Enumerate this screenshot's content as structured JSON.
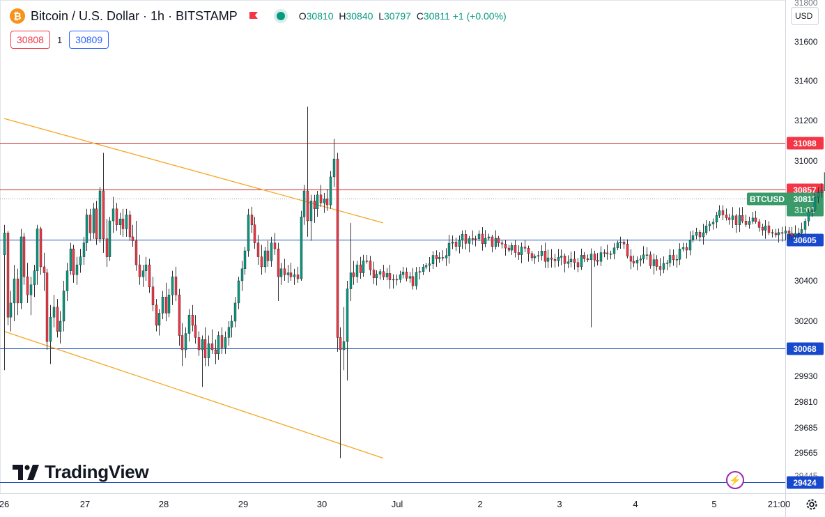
{
  "header": {
    "symbol_title": "Bitcoin / U.S. Dollar · 1h · BITSTAMP",
    "logo_glyph": "₿",
    "ohlc": {
      "o_label": "O",
      "o": "30810",
      "h_label": "H",
      "h": "30840",
      "l_label": "L",
      "l": "30797",
      "c_label": "C",
      "c": "30811",
      "change": "+1 (+0.00%)"
    }
  },
  "bid_ask": {
    "bid": "30808",
    "spread": "1",
    "ask": "30809"
  },
  "currency": "USD",
  "brand": "TradingView",
  "colors": {
    "up": "#089981",
    "down": "#f23645",
    "wick": "#333333",
    "trend": "#f5a623",
    "level_red": "#c62828",
    "level_blue": "#1e53b5",
    "level_label_red": "#f23645",
    "level_label_blue": "#1848cc",
    "last_price": "#3a9a6a"
  },
  "chart_data": {
    "type": "candlestick",
    "timeframe": "1h",
    "y_axis_ticks": [
      29424,
      29565,
      29685,
      29810,
      29930,
      30200,
      30400,
      30605,
      31000,
      31200,
      31400,
      31600
    ],
    "y_axis_partial_ticks": [
      "31800",
      "29445"
    ],
    "x_axis_ticks": [
      "26",
      "27",
      "28",
      "29",
      "30",
      "Jul",
      "2",
      "3",
      "4",
      "5",
      "21:00"
    ],
    "horizontal_levels": [
      {
        "price": 31088,
        "label": "31088",
        "color": "red"
      },
      {
        "price": 30857,
        "label": "30857",
        "color": "red"
      },
      {
        "price": 30605,
        "label": "30605",
        "color": "blue"
      },
      {
        "price": 30068,
        "label": "30068",
        "color": "blue"
      },
      {
        "price": 29424,
        "label": "29424",
        "color": "blue"
      }
    ],
    "trend_lines": [
      {
        "from": [
          "Jun 26 00:00",
          31210
        ],
        "to": [
          "Jun 30 19:00",
          30690
        ]
      },
      {
        "from": [
          "Jun 26 00:00",
          30150
        ],
        "to": [
          "Jun 30 19:00",
          29540
        ]
      }
    ],
    "last_price": {
      "symbol": "BTCUSD",
      "price": "30811",
      "countdown": "31:01"
    },
    "ohlc_series": [
      [
        "Jun 26 00h",
        30530,
        30680,
        29960,
        30640
      ],
      [
        "Jun 26 01h",
        30640,
        30650,
        30180,
        30220
      ],
      [
        "Jun 26 02h",
        30220,
        30350,
        30150,
        30290
      ],
      [
        "Jun 26 03h",
        30290,
        30480,
        30200,
        30410
      ],
      [
        "Jun 26 04h",
        30410,
        30460,
        30230,
        30290
      ],
      [
        "Jun 26 05h",
        30290,
        30660,
        30260,
        30620
      ],
      [
        "Jun 26 06h",
        30620,
        30640,
        30380,
        30420
      ],
      [
        "Jun 26 07h",
        30420,
        30490,
        30290,
        30330
      ],
      [
        "Jun 26 08h",
        30330,
        30420,
        30230,
        30380
      ],
      [
        "Jun 26 09h",
        30380,
        30480,
        30320,
        30450
      ],
      [
        "Jun 26 10h",
        30450,
        30680,
        30380,
        30660
      ],
      [
        "Jun 26 11h",
        30660,
        30670,
        30430,
        30470
      ],
      [
        "Jun 26 12h",
        30470,
        30540,
        30350,
        30440
      ],
      [
        "Jun 26 13h",
        30440,
        30460,
        30060,
        30100
      ],
      [
        "Jun 26 14h",
        30100,
        30280,
        29990,
        30220
      ],
      [
        "Jun 26 15h",
        30220,
        30330,
        30170,
        30270
      ],
      [
        "Jun 26 16h",
        30270,
        30310,
        30120,
        30150
      ],
      [
        "Jun 26 17h",
        30150,
        30250,
        30090,
        30200
      ],
      [
        "Jun 26 18h",
        30200,
        30400,
        30150,
        30350
      ],
      [
        "Jun 26 19h",
        30350,
        30490,
        30300,
        30450
      ],
      [
        "Jun 26 20h",
        30450,
        30590,
        30430,
        30560
      ],
      [
        "Jun 26 21h",
        30560,
        30580,
        30390,
        30430
      ],
      [
        "Jun 26 22h",
        30430,
        30520,
        30380,
        30480
      ],
      [
        "Jun 26 23h",
        30480,
        30560,
        30440,
        30520
      ],
      [
        "Jun 27 00h",
        30520,
        30620,
        30480,
        30590
      ],
      [
        "Jun 27 01h",
        30590,
        30760,
        30550,
        30730
      ],
      [
        "Jun 27 02h",
        30730,
        30760,
        30600,
        30640
      ],
      [
        "Jun 27 03h",
        30640,
        30790,
        30610,
        30760
      ],
      [
        "Jun 27 04h",
        30760,
        30800,
        30580,
        30610
      ],
      [
        "Jun 27 05h",
        30610,
        30870,
        30590,
        30850
      ],
      [
        "Jun 27 06h",
        30850,
        31040,
        30540,
        30610
      ],
      [
        "Jun 27 07h",
        30610,
        30710,
        30470,
        30520
      ],
      [
        "Jun 27 08h",
        30520,
        30720,
        30500,
        30700
      ],
      [
        "Jun 27 09h",
        30700,
        30820,
        30640,
        30760
      ],
      [
        "Jun 27 10h",
        30760,
        30790,
        30650,
        30680
      ],
      [
        "Jun 27 11h",
        30680,
        30740,
        30630,
        30710
      ],
      [
        "Jun 27 12h",
        30710,
        30760,
        30620,
        30660
      ],
      [
        "Jun 27 13h",
        30660,
        30760,
        30620,
        30730
      ],
      [
        "Jun 27 14h",
        30730,
        30750,
        30600,
        30620
      ],
      [
        "Jun 27 15h",
        30620,
        30680,
        30570,
        30600
      ],
      [
        "Jun 27 16h",
        30600,
        30700,
        30450,
        30480
      ],
      [
        "Jun 27 17h",
        30480,
        30530,
        30380,
        30420
      ],
      [
        "Jun 27 18h",
        30420,
        30480,
        30370,
        30450
      ],
      [
        "Jun 27 19h",
        30450,
        30520,
        30400,
        30480
      ],
      [
        "Jun 27 20h",
        30480,
        30510,
        30340,
        30370
      ],
      [
        "Jun 27 21h",
        30370,
        30420,
        30250,
        30280
      ],
      [
        "Jun 27 22h",
        30280,
        30310,
        30150,
        30180
      ],
      [
        "Jun 27 23h",
        30180,
        30260,
        30130,
        30240
      ],
      [
        "Jun 28 00h",
        30240,
        30350,
        30210,
        30320
      ],
      [
        "Jun 28 01h",
        30320,
        30390,
        30200,
        30240
      ],
      [
        "Jun 28 02h",
        30240,
        30360,
        30220,
        30330
      ],
      [
        "Jun 28 03h",
        30330,
        30450,
        30280,
        30420
      ],
      [
        "Jun 28 04h",
        30420,
        30470,
        30300,
        30330
      ],
      [
        "Jun 28 05h",
        30330,
        30360,
        30080,
        30130
      ],
      [
        "Jun 28 06h",
        30130,
        30190,
        29980,
        30060
      ],
      [
        "Jun 28 07h",
        30060,
        30170,
        30020,
        30140
      ],
      [
        "Jun 28 08h",
        30140,
        30260,
        30100,
        30230
      ],
      [
        "Jun 28 09h",
        30230,
        30280,
        30150,
        30180
      ],
      [
        "Jun 28 10h",
        30180,
        30230,
        30090,
        30120
      ],
      [
        "Jun 28 11h",
        30120,
        30150,
        30030,
        30060
      ],
      [
        "Jun 28 12h",
        30060,
        30130,
        29880,
        30110
      ],
      [
        "Jun 28 13h",
        30110,
        30170,
        29980,
        30020
      ],
      [
        "Jun 28 14h",
        30020,
        30130,
        29980,
        30090
      ],
      [
        "Jun 28 15h",
        30090,
        30160,
        30040,
        30060
      ],
      [
        "Jun 28 16h",
        30060,
        30110,
        29990,
        30040
      ],
      [
        "Jun 28 17h",
        30040,
        30150,
        30010,
        30130
      ],
      [
        "Jun 28 18h",
        30130,
        30170,
        30040,
        30070
      ],
      [
        "Jun 28 19h",
        30070,
        30150,
        30040,
        30120
      ],
      [
        "Jun 28 20h",
        30120,
        30200,
        30080,
        30170
      ],
      [
        "Jun 28 21h",
        30170,
        30230,
        30120,
        30200
      ],
      [
        "Jun 28 22h",
        30200,
        30320,
        30170,
        30290
      ],
      [
        "Jun 28 23h",
        30290,
        30420,
        30260,
        30400
      ],
      [
        "Jun 29 00h",
        30400,
        30500,
        30350,
        30460
      ],
      [
        "Jun 29 01h",
        30460,
        30570,
        30430,
        30550
      ],
      [
        "Jun 29 02h",
        30550,
        30760,
        30520,
        30730
      ],
      [
        "Jun 29 03h",
        30730,
        30770,
        30640,
        30680
      ],
      [
        "Jun 29 04h",
        30680,
        30720,
        30560,
        30590
      ],
      [
        "Jun 29 05h",
        30590,
        30630,
        30480,
        30520
      ],
      [
        "Jun 29 06h",
        30520,
        30580,
        30430,
        30470
      ],
      [
        "Jun 29 07h",
        30470,
        30570,
        30440,
        30550
      ],
      [
        "Jun 29 08h",
        30550,
        30600,
        30470,
        30500
      ],
      [
        "Jun 29 09h",
        30500,
        30620,
        30470,
        30590
      ],
      [
        "Jun 29 10h",
        30590,
        30640,
        30530,
        30560
      ],
      [
        "Jun 29 11h",
        30560,
        30590,
        30300,
        30420
      ],
      [
        "Jun 29 12h",
        30420,
        30490,
        30380,
        30460
      ],
      [
        "Jun 29 13h",
        30460,
        30510,
        30400,
        30430
      ],
      [
        "Jun 29 14h",
        30430,
        30480,
        30390,
        30440
      ],
      [
        "Jun 29 15h",
        30440,
        30490,
        30400,
        30420
      ],
      [
        "Jun 29 16h",
        30420,
        30460,
        30380,
        30430
      ],
      [
        "Jun 29 17h",
        30430,
        30470,
        30390,
        30410
      ],
      [
        "Jun 29 18h",
        30410,
        30750,
        30400,
        30720
      ],
      [
        "Jun 29 19h",
        30720,
        30880,
        30680,
        30850
      ],
      [
        "Jun 29 20h",
        30850,
        31270,
        30620,
        30700
      ],
      [
        "Jun 29 21h",
        30700,
        30830,
        30600,
        30800
      ],
      [
        "Jun 29 22h",
        30800,
        30830,
        30690,
        30760
      ],
      [
        "Jun 29 23h",
        30760,
        30850,
        30720,
        30830
      ],
      [
        "Jun 30 00h",
        30830,
        30880,
        30770,
        30790
      ],
      [
        "Jun 30 01h",
        30790,
        30840,
        30740,
        30810
      ],
      [
        "Jun 30 02h",
        30810,
        30860,
        30750,
        30780
      ],
      [
        "Jun 30 03h",
        30780,
        30950,
        30760,
        30920
      ],
      [
        "Jun 30 04h",
        30920,
        31110,
        30870,
        31010
      ],
      [
        "Jun 30 05h",
        31010,
        31040,
        30050,
        30120
      ],
      [
        "Jun 30 06h",
        30120,
        30170,
        29540,
        30060
      ],
      [
        "Jun 30 07h",
        30060,
        30270,
        29960,
        30100
      ],
      [
        "Jun 30 08h",
        30100,
        30400,
        29910,
        30360
      ],
      [
        "Jun 30 09h",
        30360,
        30690,
        30300,
        30440
      ],
      [
        "Jun 30 10h",
        30440,
        30500,
        30380,
        30420
      ],
      [
        "Jun 30 11h",
        30420,
        30500,
        30390,
        30480
      ],
      [
        "Jun 30 12h",
        30480,
        30520,
        30410,
        30440
      ],
      [
        "Jun 30 13h",
        30440,
        30530,
        30420,
        30500
      ]
    ],
    "ohlc_series_note_visible_until": "Jul 5 ~14:00"
  }
}
